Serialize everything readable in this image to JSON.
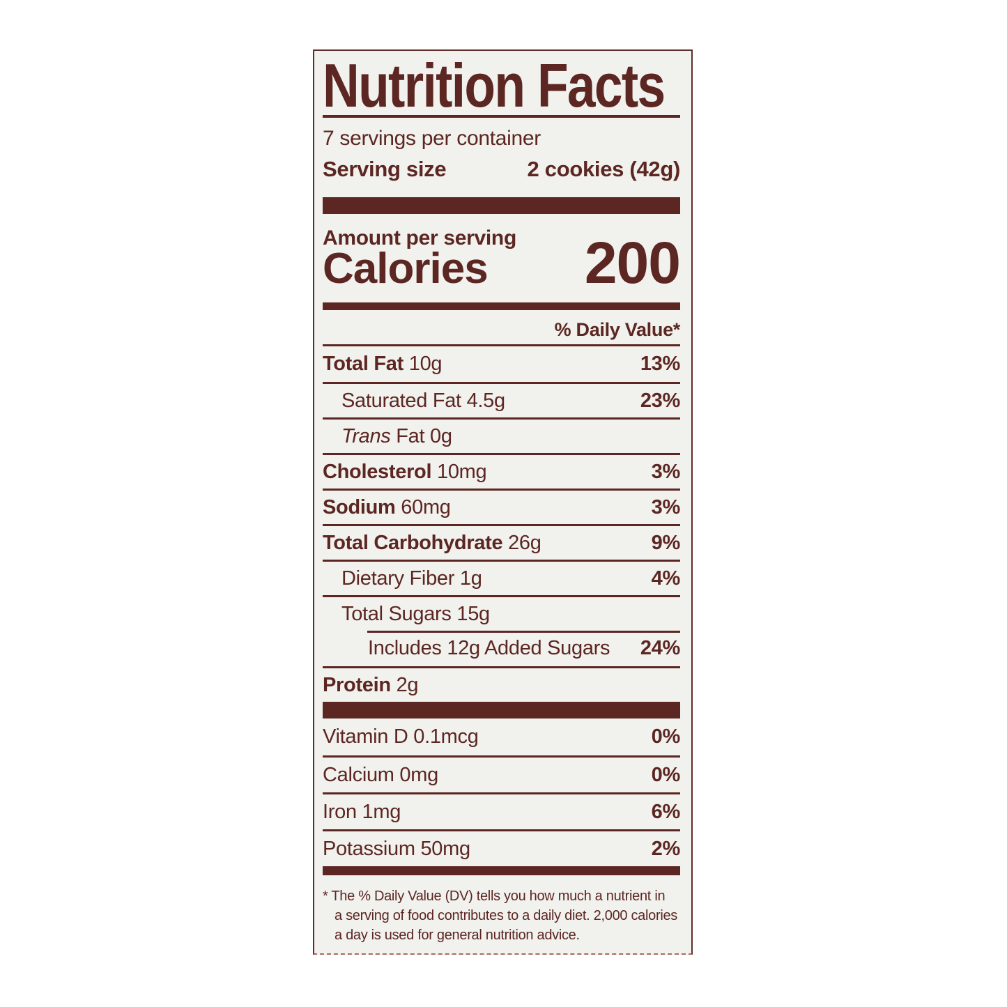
{
  "colors": {
    "ink": "#5c2622",
    "label_background": "#f1f1ed",
    "page_background": "#ffffff"
  },
  "label": {
    "title": "Nutrition Facts",
    "servings_per_container": "7 servings per container",
    "serving_size": {
      "label": "Serving size",
      "value": "2 cookies (42g)"
    },
    "amount_per_serving": "Amount per serving",
    "calories": {
      "label": "Calories",
      "value": "200"
    },
    "daily_value_header": "% Daily Value*",
    "nutrient_rows": [
      {
        "name": "Total Fat",
        "amount": "10g",
        "dv": "13%",
        "bold": true,
        "indent": 0
      },
      {
        "name": "Saturated Fat",
        "amount": "4.5g",
        "dv": "23%",
        "bold": false,
        "indent": 1
      },
      {
        "name": "Fat",
        "amount": "0g",
        "dv": "",
        "bold": false,
        "indent": 1,
        "italic_prefix": "Trans"
      },
      {
        "name": "Cholesterol",
        "amount": "10mg",
        "dv": "3%",
        "bold": true,
        "indent": 0
      },
      {
        "name": "Sodium",
        "amount": "60mg",
        "dv": "3%",
        "bold": true,
        "indent": 0
      },
      {
        "name": "Total Carbohydrate",
        "amount": "26g",
        "dv": "9%",
        "bold": true,
        "indent": 0
      },
      {
        "name": "Dietary Fiber",
        "amount": "1g",
        "dv": "4%",
        "bold": false,
        "indent": 1
      },
      {
        "name": "Total Sugars",
        "amount": "15g",
        "dv": "",
        "bold": false,
        "indent": 1
      },
      {
        "name": "Includes 12g Added Sugars",
        "amount": "",
        "dv": "24%",
        "bold": false,
        "indent": 2,
        "indented_rule": true
      },
      {
        "name": "Protein",
        "amount": "2g",
        "dv": "",
        "bold": true,
        "indent": 0
      }
    ],
    "micronutrient_rows": [
      {
        "name": "Vitamin D",
        "amount": "0.1mcg",
        "dv": "0%"
      },
      {
        "name": "Calcium",
        "amount": "0mg",
        "dv": "0%"
      },
      {
        "name": "Iron",
        "amount": "1mg",
        "dv": "6%"
      },
      {
        "name": "Potassium",
        "amount": "50mg",
        "dv": "2%"
      }
    ],
    "footnote_lines": [
      "* The % Daily Value (DV) tells you how much a nutrient in",
      "a serving of food contributes to a daily diet. 2,000 calories",
      "a day is used for general nutrition advice."
    ]
  }
}
